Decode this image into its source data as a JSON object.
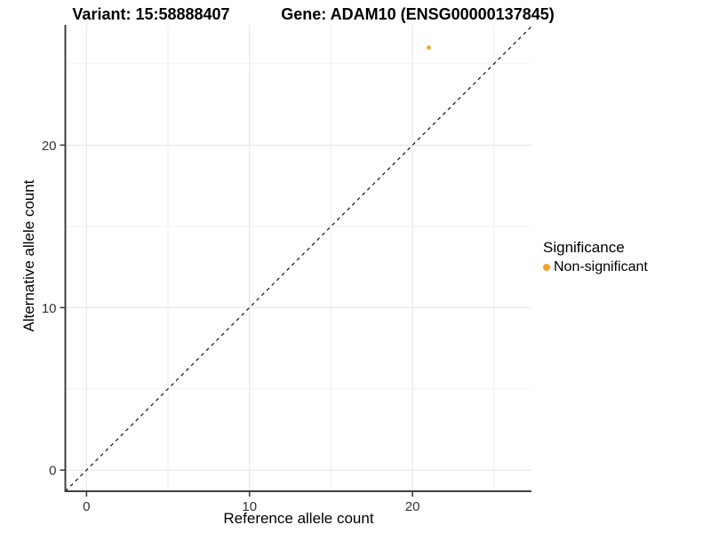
{
  "chart_data": {
    "type": "scatter",
    "title_left": "Variant: 15:58888407",
    "title_right": "Gene: ADAM10 (ENSG00000137845)",
    "xlabel": "Reference allele count",
    "ylabel": "Alternative allele count",
    "xlim": [
      -1.3,
      27.3
    ],
    "ylim": [
      -1.3,
      27.4
    ],
    "x_major_ticks": [
      0,
      10,
      20
    ],
    "y_major_ticks": [
      0,
      10,
      20
    ],
    "x_minor_ticks": [
      5,
      15,
      25
    ],
    "y_minor_ticks": [
      5,
      15,
      25
    ],
    "grid": true,
    "background": "#ffffff",
    "identity_line": {
      "equation": "y = x",
      "style": "dashed",
      "color": "#111111"
    },
    "points": [
      {
        "x": 21,
        "y": 26,
        "series": "Non-significant",
        "color": "#F9A11F",
        "radius": 2.3
      }
    ],
    "legend": {
      "title": "Significance",
      "position": "right",
      "items": [
        {
          "label": "Non-significant",
          "color": "#F9A11F"
        }
      ]
    },
    "colors": {
      "major_grid": "#e3e3e3",
      "minor_grid": "#f0f0f0",
      "axis_line": "#3f3f3f",
      "tick_label": "#333333"
    }
  }
}
